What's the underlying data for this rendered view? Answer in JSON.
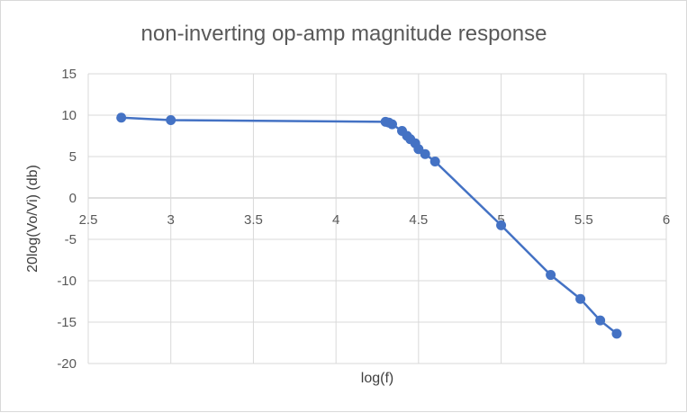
{
  "chart_data": {
    "type": "scatter",
    "title": "non-inverting op-amp magnitude response",
    "xlabel": "log(f)",
    "ylabel": "20log(Vo/Vi) (db)",
    "xlim": [
      2.5,
      6
    ],
    "ylim": [
      -20,
      15
    ],
    "x_ticks": [
      2.5,
      3,
      3.5,
      4,
      4.5,
      5,
      5.5,
      6
    ],
    "x_tick_labels": [
      "2.5",
      "3",
      "3.5",
      "4",
      "4.5",
      "5",
      "5.5",
      "6"
    ],
    "y_ticks": [
      15,
      10,
      5,
      0,
      -5,
      -10,
      -15,
      -20
    ],
    "y_tick_labels": [
      "15",
      "10",
      "5",
      "0",
      "-5",
      "-10",
      "-15",
      "-20"
    ],
    "grid": true,
    "legend": "none",
    "line_color": "#4472c4",
    "series": [
      {
        "x": [
          2.7,
          3.0,
          4.3,
          4.32,
          4.34,
          4.4,
          4.43,
          4.45,
          4.48,
          4.5,
          4.54,
          4.6,
          5.0,
          5.3,
          5.48,
          5.6,
          5.7
        ],
        "y": [
          9.7,
          9.4,
          9.2,
          9.1,
          8.9,
          8.1,
          7.5,
          7.1,
          6.6,
          5.9,
          5.3,
          4.4,
          -3.3,
          -9.3,
          -12.2,
          -14.8,
          -16.4
        ]
      }
    ]
  }
}
